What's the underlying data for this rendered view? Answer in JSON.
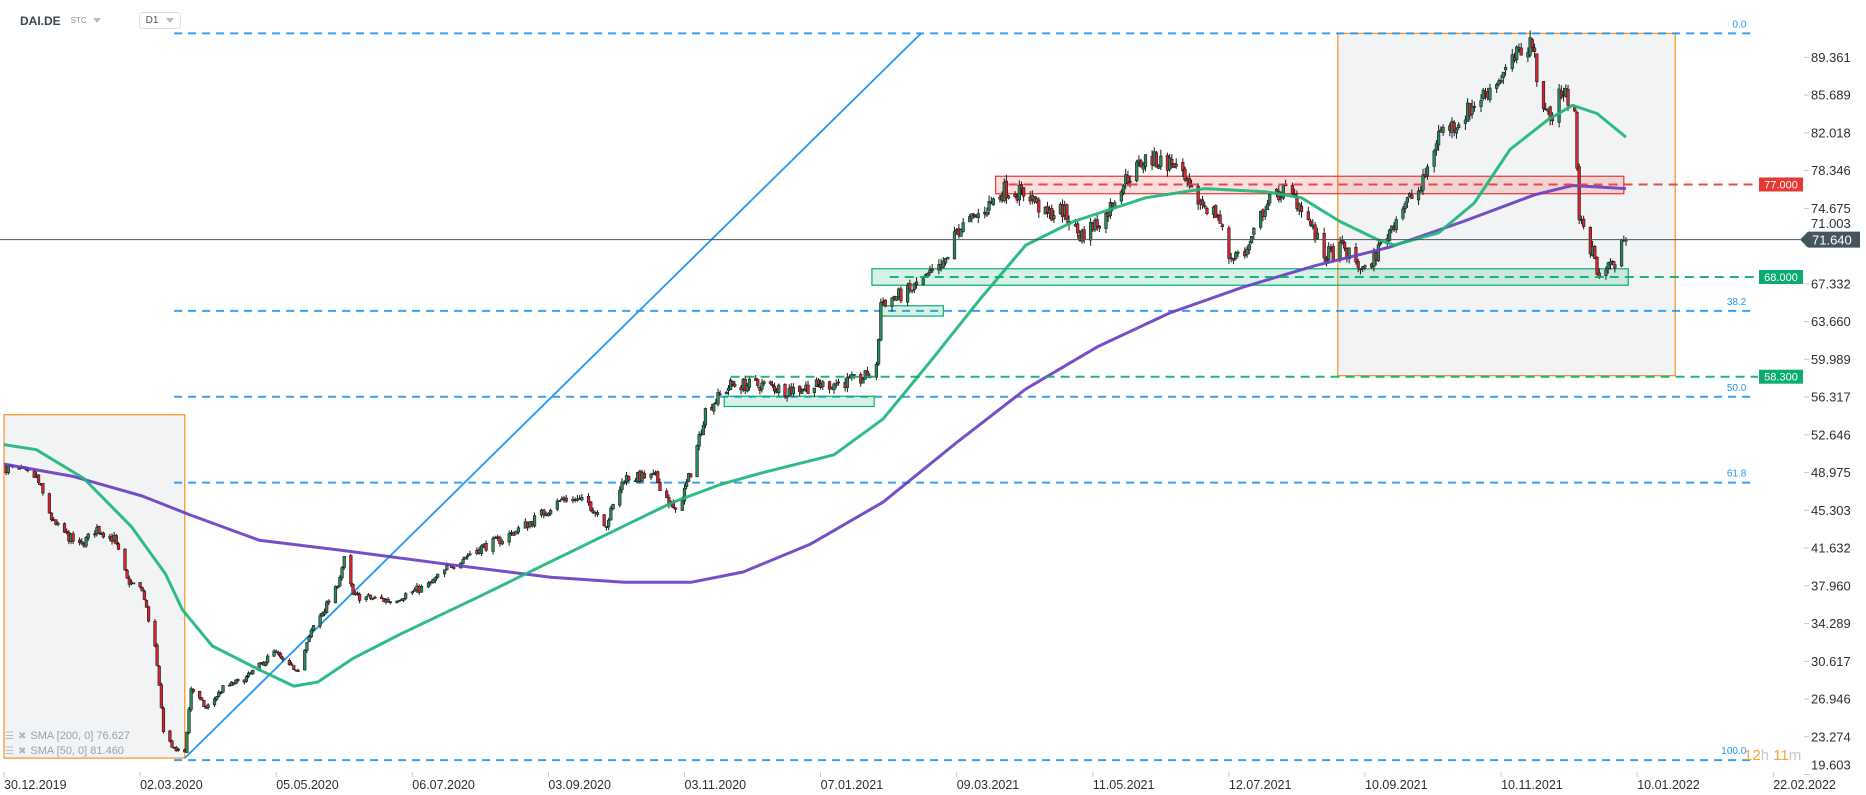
{
  "header": {
    "symbol": "DAI.DE",
    "type": "STC",
    "timeframe": "D1"
  },
  "legend": [
    {
      "label": "SMA [200, 0] 76.627",
      "color": "#6a3fc1"
    },
    {
      "label": "SMA [50, 0] 81.460",
      "color": "#1db67a"
    }
  ],
  "timer": {
    "hours": "12",
    "h": "h",
    "minutes": "11",
    "m": "m"
  },
  "colors": {
    "bull": "#2a8c5e",
    "bear": "#d7262e",
    "fib": "#2196f3",
    "trend": "#2196f3",
    "resistance": "#e53935",
    "support": "#0aad6e",
    "price_badge": "#455560",
    "box_border": "#f7931e",
    "box_fill": "#f2f3f5"
  },
  "chart_data": {
    "type": "candlestick",
    "symbol": "DAI.DE",
    "timeframe": "D1",
    "y_ticks": [
      "89.361",
      "85.689",
      "82.018",
      "78.346",
      "74.675",
      "71.003",
      "67.332",
      "63.660",
      "59.989",
      "56.317",
      "52.646",
      "48.975",
      "45.303",
      "41.632",
      "37.960",
      "34.289",
      "30.617",
      "26.946",
      "23.274",
      "19.603"
    ],
    "x_ticks": [
      "30.12.2019",
      "02.03.2020",
      "05.05.2020",
      "06.07.2020",
      "03.09.2020",
      "03.11.2020",
      "07.01.2021",
      "09.03.2021",
      "11.05.2021",
      "12.07.2021",
      "10.09.2021",
      "10.11.2021",
      "10.01.2022",
      "22.02.2022"
    ],
    "ylim": [
      19.6,
      91.7
    ],
    "current_price": {
      "value": 71.64,
      "label": "71.640"
    },
    "price_path": [
      [
        "2019-12-31",
        49.5
      ],
      [
        "2020-01-14",
        48.5
      ],
      [
        "2020-01-22",
        44.0
      ],
      [
        "2020-02-03",
        41.8
      ],
      [
        "2020-02-11",
        43.5
      ],
      [
        "2020-02-19",
        42.5
      ],
      [
        "2020-02-25",
        38.5
      ],
      [
        "2020-03-03",
        37.5
      ],
      [
        "2020-03-09",
        32.0
      ],
      [
        "2020-03-11",
        28.0
      ],
      [
        "2020-03-13",
        24.0
      ],
      [
        "2020-03-18",
        22.0
      ],
      [
        "2020-03-23",
        21.8
      ],
      [
        "2020-03-26",
        28.0
      ],
      [
        "2020-04-02",
        26.0
      ],
      [
        "2020-04-10",
        28.0
      ],
      [
        "2020-04-21",
        29.0
      ],
      [
        "2020-05-04",
        31.5
      ],
      [
        "2020-05-11",
        30.0
      ],
      [
        "2020-05-15",
        30.0
      ],
      [
        "2020-05-22",
        34.0
      ],
      [
        "2020-06-01",
        37.5
      ],
      [
        "2020-06-05",
        40.5
      ],
      [
        "2020-06-09",
        37.0
      ],
      [
        "2020-06-26",
        36.5
      ],
      [
        "2020-07-13",
        38.0
      ],
      [
        "2020-07-23",
        40.0
      ],
      [
        "2020-08-03",
        41.5
      ],
      [
        "2020-08-14",
        42.5
      ],
      [
        "2020-08-25",
        44.0
      ],
      [
        "2020-09-10",
        46.5
      ],
      [
        "2020-09-21",
        46.0
      ],
      [
        "2020-09-29",
        44.0
      ],
      [
        "2020-10-07",
        48.5
      ],
      [
        "2020-10-21",
        48.5
      ],
      [
        "2020-10-30",
        45.0
      ],
      [
        "2020-11-06",
        49.0
      ],
      [
        "2020-11-13",
        55.0
      ],
      [
        "2020-11-25",
        57.5
      ],
      [
        "2020-12-11",
        57.5
      ],
      [
        "2020-12-22",
        57.0
      ],
      [
        "2021-01-08",
        57.5
      ],
      [
        "2021-01-25",
        58.0
      ],
      [
        "2021-02-01",
        59.0
      ],
      [
        "2021-02-03",
        65.5
      ],
      [
        "2021-02-15",
        66.5
      ],
      [
        "2021-03-03",
        69.0
      ],
      [
        "2021-03-09",
        72.5
      ],
      [
        "2021-03-19",
        74.0
      ],
      [
        "2021-03-31",
        76.5
      ],
      [
        "2021-04-12",
        76.0
      ],
      [
        "2021-04-19",
        74.0
      ],
      [
        "2021-04-27",
        74.5
      ],
      [
        "2021-05-05",
        72.0
      ],
      [
        "2021-05-17",
        74.0
      ],
      [
        "2021-05-24",
        77.0
      ],
      [
        "2021-06-04",
        79.5
      ],
      [
        "2021-06-17",
        79.0
      ],
      [
        "2021-06-25",
        76.0
      ],
      [
        "2021-07-07",
        74.0
      ],
      [
        "2021-07-12",
        70.0
      ],
      [
        "2021-07-20",
        70.5
      ],
      [
        "2021-07-28",
        75.0
      ],
      [
        "2021-08-05",
        76.5
      ],
      [
        "2021-08-13",
        75.0
      ],
      [
        "2021-08-23",
        70.0
      ],
      [
        "2021-08-31",
        70.8
      ],
      [
        "2021-09-10",
        68.5
      ],
      [
        "2021-09-17",
        71.0
      ],
      [
        "2021-09-27",
        75.0
      ],
      [
        "2021-10-05",
        76.5
      ],
      [
        "2021-10-13",
        82.0
      ],
      [
        "2021-10-21",
        83.0
      ],
      [
        "2021-11-01",
        85.5
      ],
      [
        "2021-11-12",
        88.0
      ],
      [
        "2021-11-19",
        90.0
      ],
      [
        "2021-11-24",
        91.0
      ],
      [
        "2021-11-26",
        87.0
      ],
      [
        "2021-12-03",
        83.0
      ],
      [
        "2021-12-06",
        86.0
      ],
      [
        "2021-12-13",
        85.0
      ],
      [
        "2021-12-15",
        73.5
      ],
      [
        "2021-12-20",
        71.0
      ],
      [
        "2021-12-24",
        68.0
      ],
      [
        "2021-12-28",
        69.5
      ],
      [
        "2022-01-03",
        68.5
      ],
      [
        "2022-01-05",
        71.64
      ]
    ],
    "series": [
      {
        "name": "SMA [200, 0]",
        "last": 76.627,
        "color": "#6a3fc1",
        "points": [
          [
            "2019-12-30",
            49.8
          ],
          [
            "2020-01-31",
            48.6
          ],
          [
            "2020-03-03",
            46.7
          ],
          [
            "2020-03-25",
            44.9
          ],
          [
            "2020-04-27",
            42.4
          ],
          [
            "2020-06-04",
            41.4
          ],
          [
            "2020-07-23",
            40.0
          ],
          [
            "2020-09-04",
            38.8
          ],
          [
            "2020-10-07",
            38.3
          ],
          [
            "2020-11-06",
            38.3
          ],
          [
            "2020-12-01",
            39.3
          ],
          [
            "2021-01-02",
            42.0
          ],
          [
            "2021-02-04",
            46.1
          ],
          [
            "2021-03-09",
            51.9
          ],
          [
            "2021-04-10",
            57.1
          ],
          [
            "2021-05-13",
            61.2
          ],
          [
            "2021-06-15",
            64.5
          ],
          [
            "2021-07-18",
            67.0
          ],
          [
            "2021-08-19",
            69.1
          ],
          [
            "2021-09-21",
            70.9
          ],
          [
            "2021-10-24",
            73.4
          ],
          [
            "2021-11-25",
            76.0
          ],
          [
            "2021-12-12",
            76.9
          ],
          [
            "2022-01-05",
            76.6
          ]
        ]
      },
      {
        "name": "SMA [50, 0]",
        "last": 81.46,
        "color": "#1db67a",
        "points": [
          [
            "2019-12-30",
            51.7
          ],
          [
            "2020-01-14",
            51.2
          ],
          [
            "2020-02-05",
            48.4
          ],
          [
            "2020-02-27",
            43.7
          ],
          [
            "2020-03-14",
            39.1
          ],
          [
            "2020-03-22",
            35.6
          ],
          [
            "2020-04-05",
            32.1
          ],
          [
            "2020-04-27",
            29.8
          ],
          [
            "2020-05-13",
            28.2
          ],
          [
            "2020-05-24",
            28.6
          ],
          [
            "2020-06-09",
            30.9
          ],
          [
            "2020-07-01",
            33.3
          ],
          [
            "2020-08-03",
            36.8
          ],
          [
            "2020-09-04",
            40.3
          ],
          [
            "2020-10-07",
            43.8
          ],
          [
            "2020-10-29",
            46.1
          ],
          [
            "2020-11-20",
            47.8
          ],
          [
            "2020-12-11",
            49.0
          ],
          [
            "2021-01-13",
            50.7
          ],
          [
            "2021-02-04",
            54.2
          ],
          [
            "2021-02-26",
            60.0
          ],
          [
            "2021-03-20",
            65.9
          ],
          [
            "2021-04-10",
            71.1
          ],
          [
            "2021-05-02",
            73.4
          ],
          [
            "2021-06-04",
            75.7
          ],
          [
            "2021-07-01",
            76.6
          ],
          [
            "2021-07-28",
            76.3
          ],
          [
            "2021-08-13",
            75.7
          ],
          [
            "2021-08-30",
            73.4
          ],
          [
            "2021-09-15",
            71.7
          ],
          [
            "2021-09-23",
            71.1
          ],
          [
            "2021-10-13",
            72.3
          ],
          [
            "2021-10-29",
            75.2
          ],
          [
            "2021-11-14",
            80.4
          ],
          [
            "2021-12-01",
            83.3
          ],
          [
            "2021-12-12",
            84.7
          ],
          [
            "2021-12-23",
            83.9
          ],
          [
            "2022-01-05",
            81.6
          ]
        ]
      }
    ],
    "fibonacci": {
      "from": "2020-03-18",
      "to": "2022-02-16",
      "levels": [
        {
          "label": "0.0",
          "price": 91.7
        },
        {
          "label": "38.2",
          "price": 64.7
        },
        {
          "label": "50.0",
          "price": 56.35
        },
        {
          "label": "61.8",
          "price": 48.0
        },
        {
          "label": "100.0",
          "price": 21.0
        }
      ]
    },
    "trendline": {
      "start": [
        "2020-03-23",
        21.2
      ],
      "end": [
        "2021-02-21",
        91.7
      ]
    },
    "boxes": [
      {
        "kind": "range",
        "from": "2019-12-30",
        "to": "2020-03-23",
        "top": 54.6,
        "bottom": 21.2
      },
      {
        "kind": "range",
        "from": "2021-08-29",
        "to": "2022-01-22",
        "top": 91.7,
        "bottom": 58.4
      },
      {
        "kind": "resistance",
        "from": "2021-03-27",
        "to": "2022-01-04",
        "top": 77.8,
        "bottom": 76.1
      },
      {
        "kind": "support",
        "from": "2021-01-30",
        "to": "2022-01-06",
        "top": 68.8,
        "bottom": 67.2
      },
      {
        "kind": "support",
        "from": "2021-02-03",
        "to": "2021-03-03",
        "top": 65.2,
        "bottom": 64.2
      },
      {
        "kind": "support",
        "from": "2020-11-22",
        "to": "2021-01-31",
        "top": 56.4,
        "bottom": 55.4
      }
    ],
    "levels": [
      {
        "kind": "resistance",
        "price": 77.0,
        "label": "77.000",
        "from": "2021-04-02"
      },
      {
        "kind": "support",
        "price": 68.0,
        "label": "68.000",
        "from": "2021-02-07"
      },
      {
        "kind": "support",
        "price": 58.3,
        "label": "58.300",
        "from": "2020-11-25"
      }
    ]
  }
}
